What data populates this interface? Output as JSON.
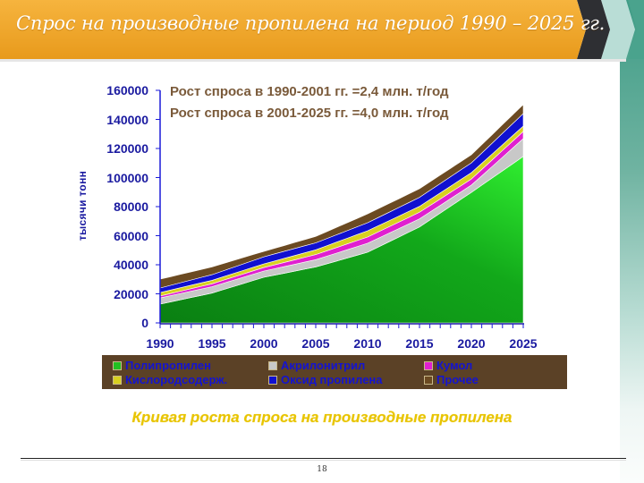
{
  "slide": {
    "title": "Спрос на производные пропилена на период 1990 – 2025 гг.",
    "page_number": "18",
    "caption": "Кривая роста спроса на производные пропилена",
    "colors": {
      "banner_orange": "#f0a52a",
      "banner_dark": "#2e2f33",
      "banner_light": "#b9ddd6",
      "teal_strip": "#3f9c86",
      "caption_yellow": "#e8c400",
      "axis_text": "#1a1aa0",
      "note_text": "#7a5a3a",
      "legend_bg": "#5b4126"
    }
  },
  "notes": [
    "Рост спроса в 1990-2001 гг. =2,4 млн. т/год",
    "Рост спроса в 2001-2025 гг. =4,0 млн. т/год"
  ],
  "chart_data": {
    "type": "area",
    "stacked": true,
    "title": "Спрос на производные пропилена на период 1990 – 2025 гг.",
    "xlabel": "",
    "ylabel": "тысячи тонн",
    "ylim": [
      0,
      160000
    ],
    "xlim": [
      1990,
      2025
    ],
    "yticks": [
      "160000",
      "140000",
      "120000",
      "100000",
      "80000",
      "60000",
      "40000",
      "20000",
      "0"
    ],
    "xticks": [
      "1990",
      "1995",
      "2000",
      "2005",
      "2010",
      "2015",
      "2020",
      "2025"
    ],
    "grid": false,
    "legend_position": "bottom",
    "x": [
      1990,
      1995,
      2000,
      2005,
      2010,
      2015,
      2020,
      2025
    ],
    "series": [
      {
        "name": "Полипропилен",
        "color": "#16b016",
        "values": [
          12900,
          20500,
          31400,
          38500,
          48600,
          66000,
          89800,
          114500
        ]
      },
      {
        "name": "Акрилонитрил",
        "color": "#c8c8c8",
        "values": [
          4300,
          4400,
          4300,
          5000,
          6200,
          5600,
          5000,
          12300
        ]
      },
      {
        "name": "Кумол",
        "color": "#e020d0",
        "values": [
          1300,
          2000,
          2400,
          3500,
          4300,
          4500,
          4200,
          4900
        ]
      },
      {
        "name": "Кислородсодерж.",
        "color": "#d8d020",
        "values": [
          2400,
          2400,
          2500,
          3300,
          4300,
          4100,
          4400,
          3700
        ]
      },
      {
        "name": "Оксид пропилена",
        "color": "#1010d0",
        "values": [
          3100,
          3900,
          4900,
          4800,
          5500,
          6200,
          6700,
          8600
        ]
      },
      {
        "name": "Прочее",
        "color": "#6b4a22",
        "values": [
          6100,
          5300,
          3700,
          4400,
          6100,
          5900,
          5600,
          6200
        ]
      }
    ],
    "totals_approx": [
      30100,
      38500,
      49200,
      59500,
      75000,
      92300,
      115700,
      150200
    ],
    "annotations": [
      "Рост спроса в 1990-2001 гг. =2,4 млн. т/год",
      "Рост спроса в 2001-2025 гг. =4,0 млн. т/год"
    ]
  },
  "legend": {
    "items": [
      {
        "label": "Полипропилен",
        "color": "#22c022"
      },
      {
        "label": "Акрилонитрил",
        "color": "#c8c8c8"
      },
      {
        "label": "Кумол",
        "color": "#e020d0"
      },
      {
        "label": "Кислородсодерж.",
        "color": "#d8d020"
      },
      {
        "label": "Оксид пропилена",
        "color": "#1010d0"
      },
      {
        "label": "Прочее",
        "color": "#6b4a22"
      }
    ]
  }
}
